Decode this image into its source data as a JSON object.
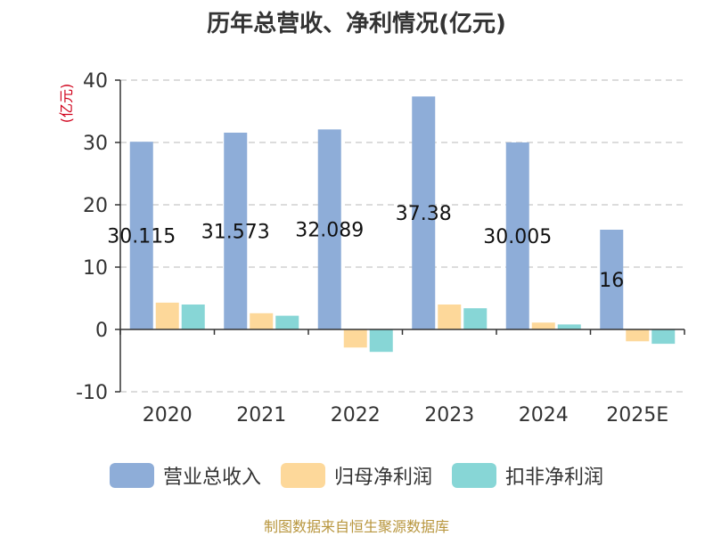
{
  "chart_data": {
    "type": "bar",
    "title": "历年总营收、净利情况(亿元)",
    "ylabel": "(亿元)",
    "ylim": [
      -10,
      40
    ],
    "yticks": [
      -10,
      0,
      10,
      20,
      30,
      40
    ],
    "grid": true,
    "legend_position": "bottom",
    "categories": [
      "2020",
      "2021",
      "2022",
      "2023",
      "2024",
      "2025E"
    ],
    "series": [
      {
        "name": "营业总收入",
        "color": "#8eadd8",
        "values": [
          30.115,
          31.573,
          32.089,
          37.38,
          30.005,
          16
        ],
        "labels": [
          "30.115",
          "31.573",
          "32.089",
          "37.38",
          "30.005",
          "16"
        ]
      },
      {
        "name": "归母净利润",
        "color": "#fdd89a",
        "values": [
          4.3,
          2.6,
          -2.9,
          4.0,
          1.1,
          -1.9
        ]
      },
      {
        "name": "扣非净利润",
        "color": "#87d6d6",
        "values": [
          4.0,
          2.2,
          -3.6,
          3.4,
          0.8,
          -2.3
        ]
      }
    ]
  },
  "source": "制图数据来自恒生聚源数据库"
}
